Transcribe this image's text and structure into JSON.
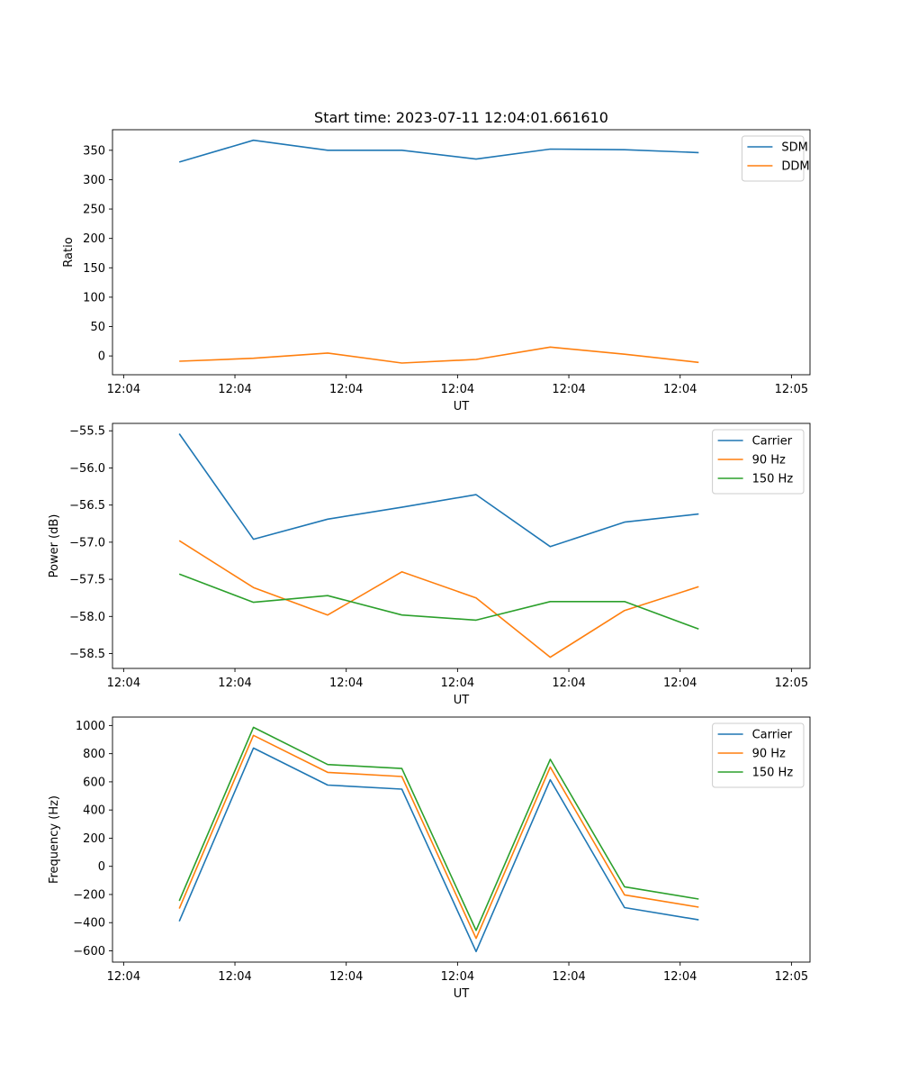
{
  "title": "Start time: 2023-07-11 12:04:01.661610",
  "chart_data": [
    {
      "type": "line",
      "title": "Start time: 2023-07-11 12:04:01.661610",
      "xlabel": "UT",
      "ylabel": "Ratio",
      "xlim": [
        -0.9,
        8.5
      ],
      "ylim": [
        -32,
        385
      ],
      "x": [
        0,
        1,
        2,
        3,
        4,
        5,
        6,
        7
      ],
      "xticks": [
        {
          "v": -0.75,
          "label": "12:04"
        },
        {
          "v": 0.75,
          "label": "12:04"
        },
        {
          "v": 2.25,
          "label": "12:04"
        },
        {
          "v": 3.75,
          "label": "12:04"
        },
        {
          "v": 5.25,
          "label": "12:04"
        },
        {
          "v": 6.75,
          "label": "12:04"
        },
        {
          "v": 8.25,
          "label": "12:05"
        }
      ],
      "yticks": [
        0,
        50,
        100,
        150,
        200,
        250,
        300,
        350
      ],
      "legend": "top-right",
      "series": [
        {
          "name": "SDM",
          "color": "#1f77b4",
          "values": [
            330,
            367,
            350,
            350,
            335,
            352,
            351,
            346
          ]
        },
        {
          "name": "DDM",
          "color": "#ff7f0e",
          "values": [
            -9,
            -4,
            5,
            -12,
            -6,
            15,
            3,
            -11
          ]
        }
      ]
    },
    {
      "type": "line",
      "xlabel": "UT",
      "ylabel": "Power (dB)",
      "xlim": [
        -0.9,
        8.5
      ],
      "ylim": [
        -58.7,
        -55.4
      ],
      "x": [
        0,
        1,
        2,
        3,
        4,
        5,
        6,
        7
      ],
      "xticks": [
        {
          "v": -0.75,
          "label": "12:04"
        },
        {
          "v": 0.75,
          "label": "12:04"
        },
        {
          "v": 2.25,
          "label": "12:04"
        },
        {
          "v": 3.75,
          "label": "12:04"
        },
        {
          "v": 5.25,
          "label": "12:04"
        },
        {
          "v": 6.75,
          "label": "12:04"
        },
        {
          "v": 8.25,
          "label": "12:05"
        }
      ],
      "yticks": [
        -58.5,
        -58.0,
        -57.5,
        -57.0,
        -56.5,
        -56.0,
        -55.5
      ],
      "legend": "top-right",
      "series": [
        {
          "name": "Carrier",
          "color": "#1f77b4",
          "values": [
            -55.54,
            -56.96,
            -56.69,
            -56.53,
            -56.36,
            -57.06,
            -56.73,
            -56.62
          ]
        },
        {
          "name": "90 Hz",
          "color": "#ff7f0e",
          "values": [
            -56.98,
            -57.61,
            -57.98,
            -57.4,
            -57.75,
            -58.55,
            -57.92,
            -57.6
          ]
        },
        {
          "name": "150 Hz",
          "color": "#2ca02c",
          "values": [
            -57.43,
            -57.81,
            -57.72,
            -57.98,
            -58.05,
            -57.8,
            -57.8,
            -58.17
          ]
        }
      ]
    },
    {
      "type": "line",
      "xlabel": "UT",
      "ylabel": "Frequency (Hz)",
      "xlim": [
        -0.9,
        8.5
      ],
      "ylim": [
        -680,
        1060
      ],
      "x": [
        0,
        1,
        2,
        3,
        4,
        5,
        6,
        7
      ],
      "xticks": [
        {
          "v": -0.75,
          "label": "12:04"
        },
        {
          "v": 0.75,
          "label": "12:04"
        },
        {
          "v": 2.25,
          "label": "12:04"
        },
        {
          "v": 3.75,
          "label": "12:04"
        },
        {
          "v": 5.25,
          "label": "12:04"
        },
        {
          "v": 6.75,
          "label": "12:04"
        },
        {
          "v": 8.25,
          "label": "12:05"
        }
      ],
      "yticks": [
        -600,
        -400,
        -200,
        0,
        200,
        400,
        600,
        800,
        1000
      ],
      "legend": "top-right",
      "series": [
        {
          "name": "Carrier",
          "color": "#1f77b4",
          "values": [
            -390,
            840,
            577,
            548,
            -605,
            615,
            -293,
            -380
          ]
        },
        {
          "name": "90 Hz",
          "color": "#ff7f0e",
          "values": [
            -300,
            930,
            667,
            638,
            -512,
            705,
            -203,
            -290
          ]
        },
        {
          "name": "150 Hz",
          "color": "#2ca02c",
          "values": [
            -245,
            987,
            723,
            695,
            -455,
            760,
            -145,
            -232
          ]
        }
      ]
    }
  ]
}
